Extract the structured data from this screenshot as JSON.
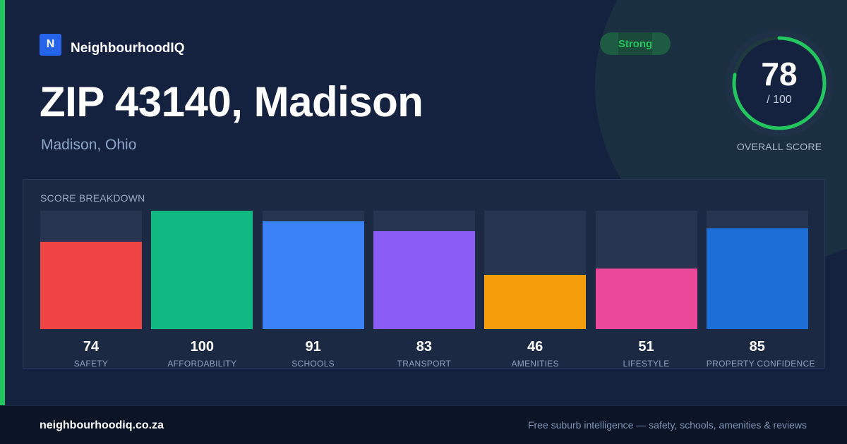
{
  "brand": {
    "logo_letter": "N",
    "name": "NeighbourhoodIQ",
    "logo_color": "#2563eb"
  },
  "header": {
    "title": "ZIP 43140, Madison",
    "subtitle": "Madison, Ohio"
  },
  "badge": {
    "label": "Strong",
    "color": "#22c55e"
  },
  "overall_score": {
    "value": "78",
    "max_label": "/ 100",
    "label": "OVERALL SCORE",
    "value_num": 78,
    "max_num": 100,
    "ring_color": "#22c55e"
  },
  "panel": {
    "title": "SCORE BREAKDOWN"
  },
  "chart_data": {
    "type": "bar",
    "title": "SCORE BREAKDOWN",
    "categories": [
      "SAFETY",
      "AFFORDABILITY",
      "SCHOOLS",
      "TRANSPORT",
      "AMENITIES",
      "LIFESTYLE",
      "PROPERTY CONFIDENCE"
    ],
    "values": [
      74,
      100,
      91,
      83,
      46,
      51,
      85
    ],
    "colors": [
      "#ef4444",
      "#10b981",
      "#3b82f6",
      "#8b5cf6",
      "#f59e0b",
      "#ec4899",
      "#1d6fd8"
    ],
    "ylim": [
      0,
      100
    ],
    "grid": false,
    "legend": "none"
  },
  "footer": {
    "site": "neighbourhoodiq.co.za",
    "tagline": "Free suburb intelligence — safety, schools, amenities & reviews"
  }
}
